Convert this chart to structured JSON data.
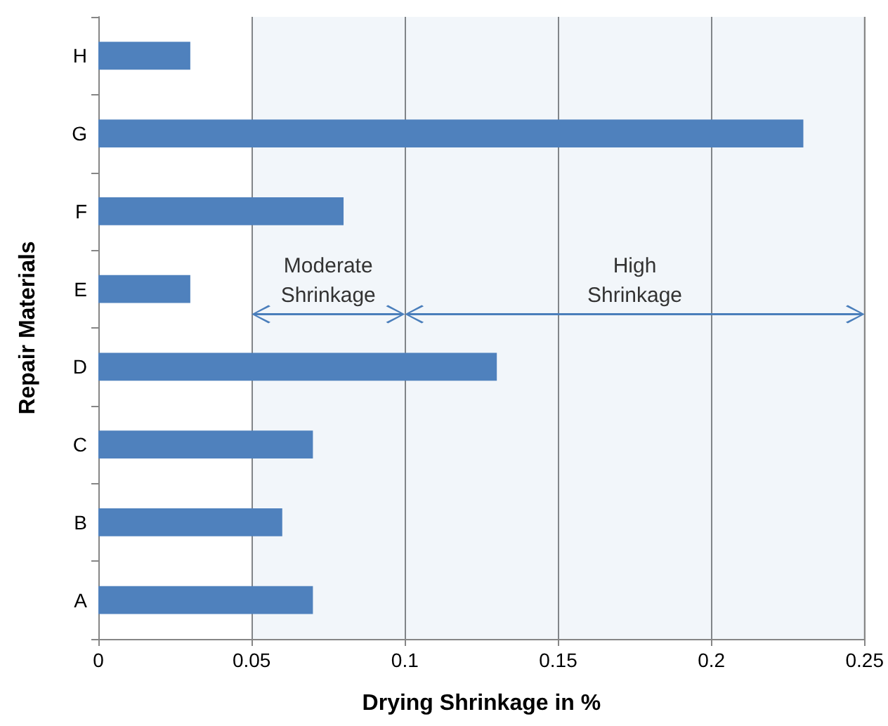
{
  "chart_data": {
    "type": "bar",
    "orientation": "horizontal",
    "xlabel": "Drying Shrinkage in %",
    "ylabel": "Repair Materials",
    "categories": [
      "H",
      "G",
      "F",
      "E",
      "D",
      "C",
      "B",
      "A"
    ],
    "values": [
      0.03,
      0.23,
      0.08,
      0.03,
      0.13,
      0.07,
      0.06,
      0.07
    ],
    "color": "#4f81bd",
    "xlim": [
      0,
      0.25
    ],
    "xticks": [
      0,
      0.05,
      0.1,
      0.15,
      0.2,
      0.25
    ],
    "grid": "x",
    "bands": [
      {
        "axis": "x",
        "from": 0.05,
        "to": 0.1,
        "label": "Moderate Shrinkage",
        "color": "#4a7ebb"
      },
      {
        "axis": "x",
        "from": 0.1,
        "to": 0.25,
        "label": "High Shrinkage",
        "color": "#4a7ebb"
      }
    ]
  }
}
